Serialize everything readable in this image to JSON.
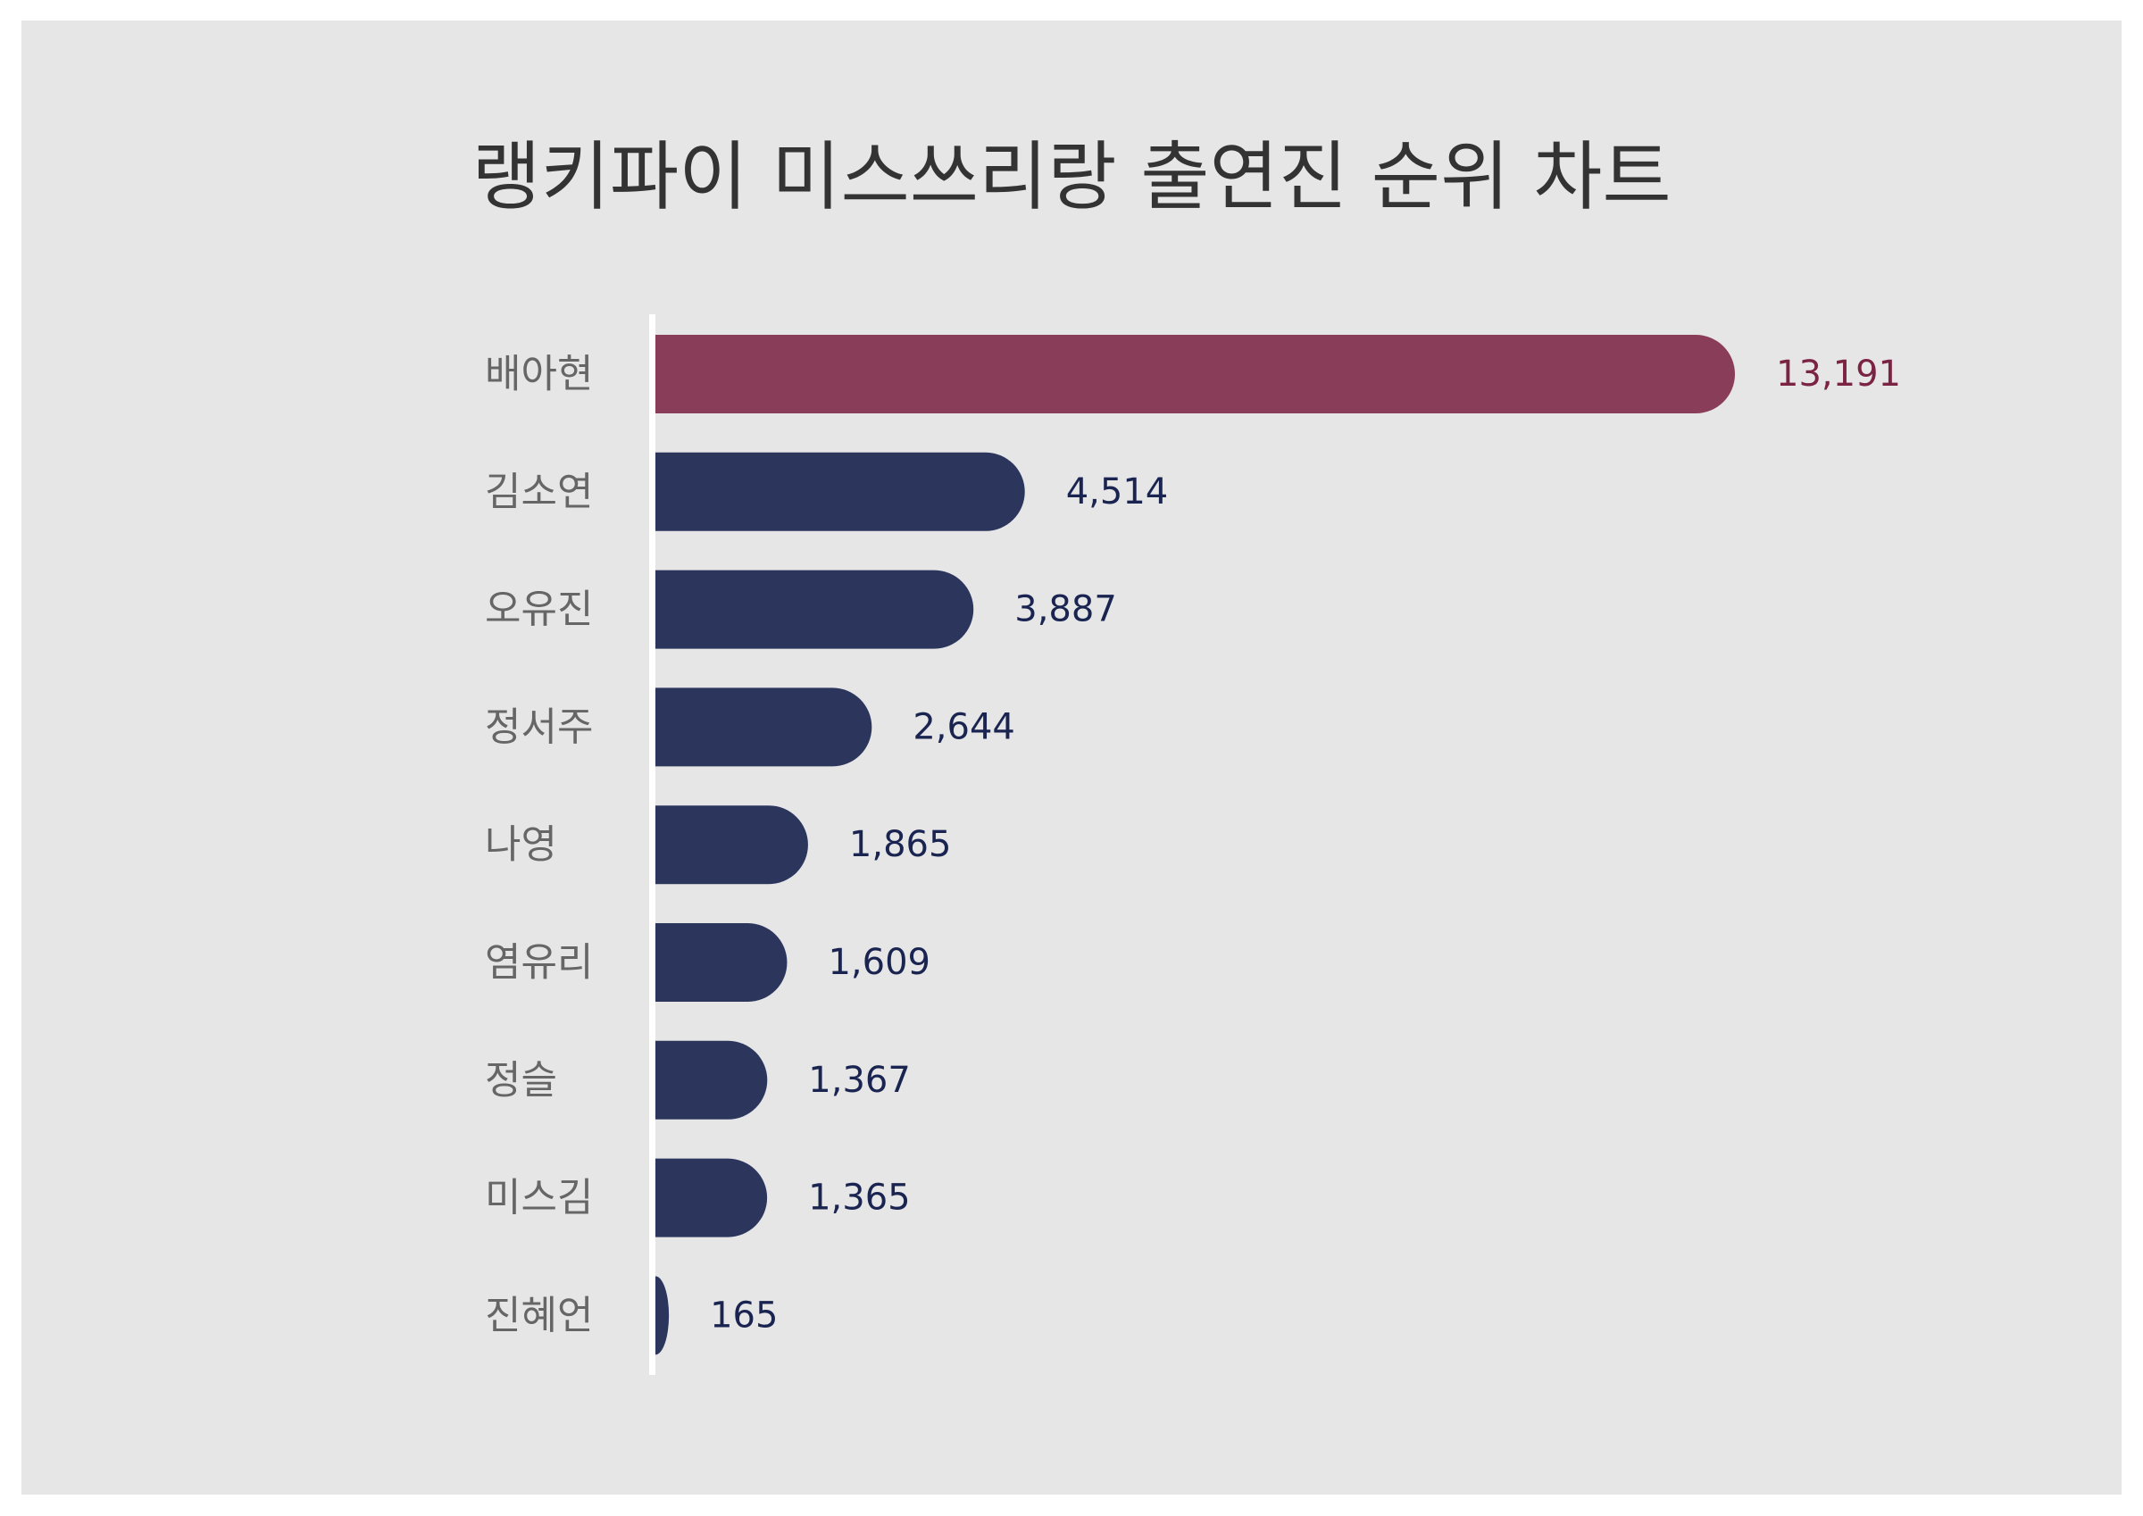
{
  "chart_data": {
    "type": "bar",
    "orientation": "horizontal",
    "title": "랭키파이 미스쓰리랑 출연진 순위 차트",
    "categories": [
      "배아현",
      "김소연",
      "오유진",
      "정서주",
      "나영",
      "염유리",
      "정슬",
      "미스김",
      "진혜언"
    ],
    "values": [
      13191,
      4514,
      3887,
      2644,
      1865,
      1609,
      1367,
      1365,
      165
    ],
    "value_labels": [
      "13,191",
      "4,514",
      "3,887",
      "2,644",
      "1,865",
      "1,609",
      "1,367",
      "1,365",
      "165"
    ],
    "xlim": [
      0,
      13191
    ],
    "grid": false,
    "legend": "none",
    "colors": {
      "highlight_bar": "#8a3d58",
      "bar": "#2c365d",
      "highlight_label": "#7a2342",
      "label": "#1a2450",
      "axis_line": "#ffffff",
      "background": "#e6e6e7"
    }
  }
}
